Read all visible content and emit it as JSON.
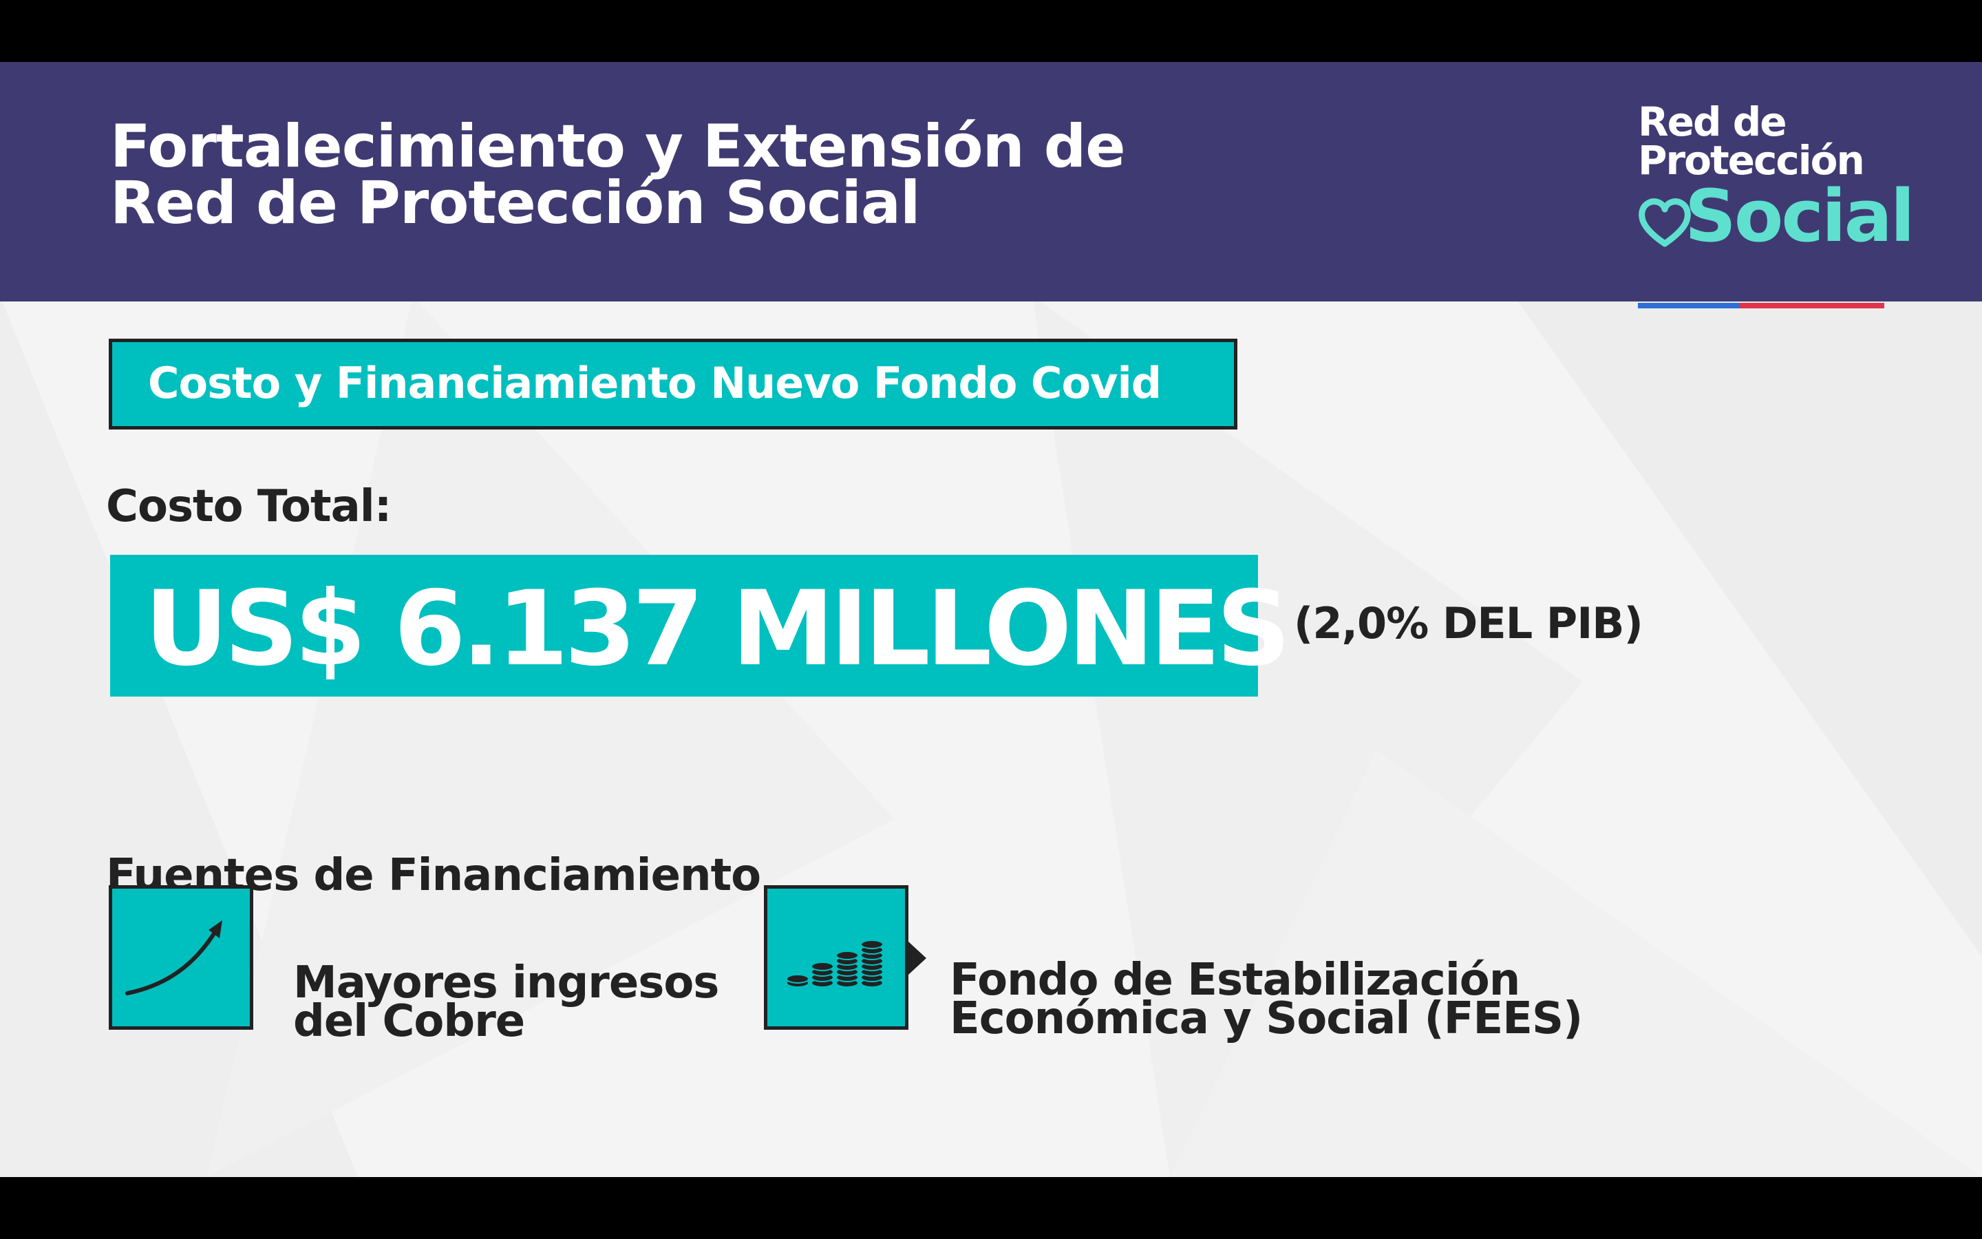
{
  "header": {
    "title_line1": "Fortalecimiento y Extensión de",
    "title_line2": "Red de Protección Social",
    "background_color": "#403a72"
  },
  "logo": {
    "line1": "Red de",
    "line2": "Protección",
    "line3": "Social",
    "accent_color": "#5fe0cf",
    "icon": "heart-icon"
  },
  "subtitle": {
    "text": "Costo y Financiamiento Nuevo Fondo Covid"
  },
  "cost": {
    "label": "Costo Total:",
    "amount": "US$ 6.137 MILLONES",
    "pib": "(2,0% DEL PIB)"
  },
  "financing": {
    "label": "Fuentes de Financiamiento",
    "sources": [
      {
        "icon": "growth-arrow-icon",
        "line1": "Mayores ingresos",
        "line2": "del Cobre"
      },
      {
        "icon": "coin-stacks-icon",
        "line1": "Fondo de Estabilización",
        "line2": "Económica y Social (FEES)"
      }
    ]
  },
  "colors": {
    "teal": "#00bfbf",
    "dark_text": "#222222",
    "background": "#f4f4f4"
  }
}
